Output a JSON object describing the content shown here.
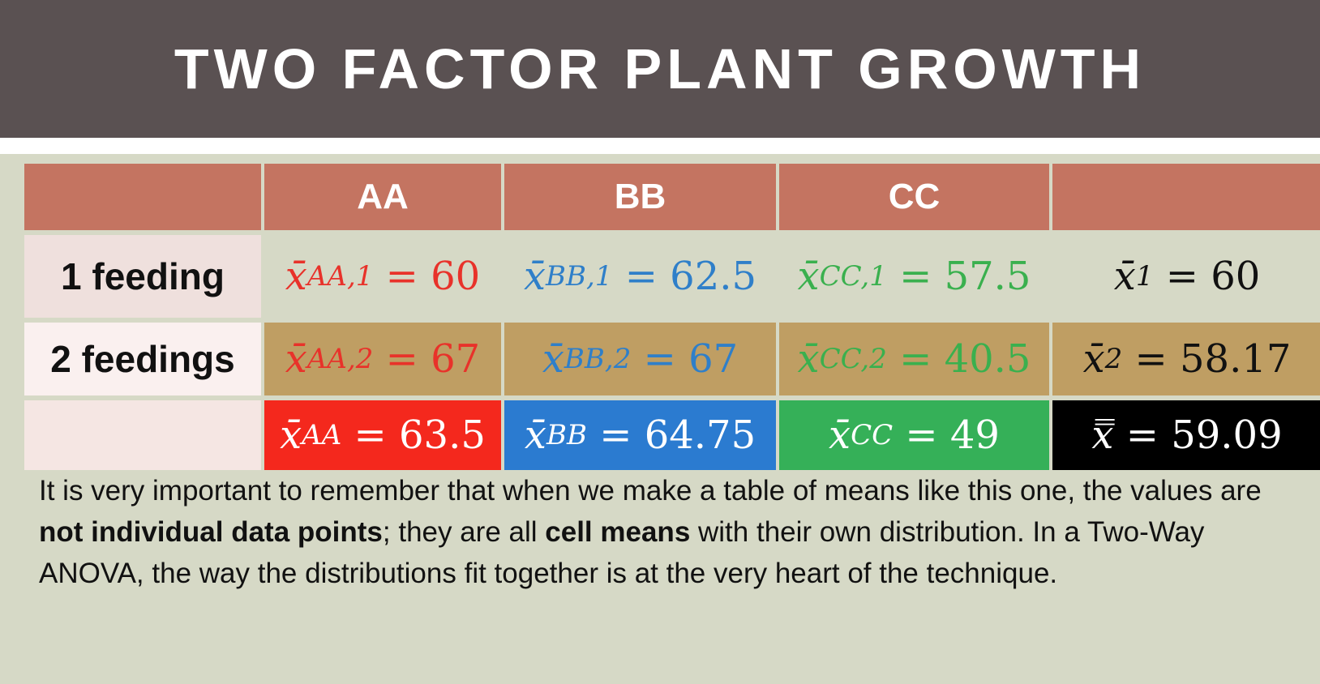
{
  "title": "TWO FACTOR PLANT GROWTH",
  "columns": [
    "",
    "AA",
    "BB",
    "CC",
    ""
  ],
  "rows": [
    {
      "label": "1 feeding",
      "cells": [
        {
          "var": "x̄",
          "sub": "AA,1",
          "value": "60"
        },
        {
          "var": "x̄",
          "sub": "BB,1",
          "value": "62.5"
        },
        {
          "var": "x̄",
          "sub": "CC,1",
          "value": "57.5"
        },
        {
          "var": "x̄",
          "sub": "1",
          "value": "60"
        }
      ]
    },
    {
      "label": "2 feedings",
      "cells": [
        {
          "var": "x̄",
          "sub": "AA,2",
          "value": "67"
        },
        {
          "var": "x̄",
          "sub": "BB,2",
          "value": "67"
        },
        {
          "var": "x̄",
          "sub": "CC,2",
          "value": "40.5"
        },
        {
          "var": "x̄",
          "sub": "2",
          "value": "58.17"
        }
      ]
    },
    {
      "label": "",
      "cells": [
        {
          "var": "x̄",
          "sub": "AA",
          "value": "63.5"
        },
        {
          "var": "x̄",
          "sub": "BB",
          "value": "64.75"
        },
        {
          "var": "x̄",
          "sub": "CC",
          "value": "49"
        },
        {
          "var": "x̿",
          "sub": "",
          "value": "59.09"
        }
      ]
    }
  ],
  "colors": {
    "header_bg": "#5a5152",
    "column_header_bg": "#c47461",
    "aa": "#e8322a",
    "bb": "#2f7fc9",
    "cc": "#3ab04e",
    "row2_bg": "#bf9e63",
    "background": "#d6d9c6"
  },
  "note": {
    "part1": "It is very important to remember that when we make a table of means like this one, the values are ",
    "bold1": "not individual data points",
    "part2": "; they are all ",
    "bold2": "cell means",
    "part3": " with their own distribution. In a Two-Way ANOVA, the way the distributions fit together is at the very heart of the technique."
  }
}
